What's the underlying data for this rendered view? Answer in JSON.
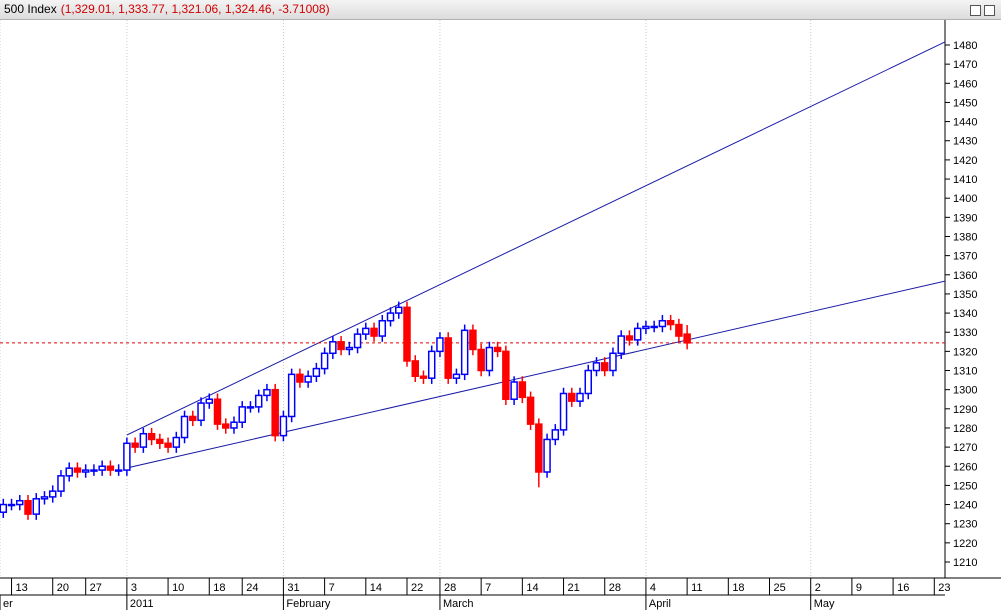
{
  "title_bar": {
    "name": "500 Index",
    "values": "(1,329.01, 1,333.77, 1,321.06, 1,324.46, -3.71008)"
  },
  "chart_data": {
    "type": "candlestick",
    "x": [
      -15,
      -14,
      -13,
      -12,
      -11,
      -10,
      -9,
      -8,
      -7,
      -6,
      -5,
      -4,
      -3,
      -2,
      -1,
      0,
      1,
      2,
      3,
      4,
      5,
      6,
      7,
      8,
      9,
      10,
      11,
      12,
      13,
      14,
      15,
      16,
      17,
      18,
      19,
      20,
      21,
      22,
      23,
      24,
      25,
      26,
      27,
      28,
      29,
      30,
      31,
      32,
      33,
      34,
      35,
      36,
      37,
      38,
      39,
      40,
      41,
      42,
      43,
      44,
      45,
      46,
      47,
      48,
      49,
      50,
      51,
      52,
      53,
      54,
      55,
      56,
      57,
      58,
      59,
      60,
      61,
      62,
      63,
      64,
      65,
      66,
      67,
      68
    ],
    "open": [
      1236,
      1240,
      1240,
      1242,
      1235,
      1243,
      1244,
      1247,
      1255,
      1259,
      1257,
      1258,
      1258,
      1260,
      1258,
      1258,
      1272,
      1270,
      1277,
      1274,
      1272,
      1270,
      1275,
      1286,
      1284,
      1293,
      1295,
      1282,
      1280,
      1283,
      1291,
      1291,
      1297,
      1300,
      1276,
      1286,
      1308,
      1304,
      1307,
      1311,
      1319,
      1325,
      1321,
      1322,
      1329,
      1332,
      1328,
      1336,
      1340,
      1343,
      1315,
      1307,
      1306,
      1320,
      1327,
      1306,
      1308,
      1331,
      1321,
      1310,
      1322,
      1320,
      1295,
      1304,
      1296,
      1282,
      1257,
      1274,
      1279,
      1298,
      1294,
      1298,
      1310,
      1314,
      1310,
      1319,
      1328,
      1326,
      1332,
      1333,
      1333,
      1336,
      1334,
      1329.01
    ],
    "high": [
      1243,
      1243,
      1245,
      1245,
      1246,
      1247,
      1250,
      1258,
      1262,
      1262,
      1261,
      1261,
      1263,
      1263,
      1261,
      1275,
      1275,
      1280,
      1280,
      1277,
      1275,
      1278,
      1289,
      1289,
      1296,
      1298,
      1298,
      1285,
      1286,
      1294,
      1294,
      1300,
      1303,
      1303,
      1289,
      1311,
      1311,
      1310,
      1314,
      1322,
      1328,
      1328,
      1325,
      1332,
      1335,
      1335,
      1339,
      1343,
      1346,
      1346,
      1318,
      1310,
      1323,
      1330,
      1330,
      1311,
      1334,
      1334,
      1324,
      1325,
      1325,
      1323,
      1307,
      1307,
      1299,
      1285,
      1277,
      1282,
      1301,
      1301,
      1301,
      1313,
      1317,
      1317,
      1322,
      1331,
      1331,
      1335,
      1336,
      1336,
      1339,
      1339,
      1337,
      1333.77
    ],
    "low": [
      1233,
      1237,
      1237,
      1232,
      1232,
      1240,
      1241,
      1244,
      1252,
      1254,
      1254,
      1255,
      1255,
      1255,
      1255,
      1255,
      1267,
      1267,
      1271,
      1269,
      1267,
      1267,
      1272,
      1281,
      1281,
      1290,
      1279,
      1277,
      1277,
      1280,
      1288,
      1288,
      1294,
      1273,
      1273,
      1283,
      1301,
      1301,
      1304,
      1308,
      1316,
      1318,
      1318,
      1319,
      1326,
      1325,
      1325,
      1333,
      1337,
      1312,
      1304,
      1303,
      1303,
      1317,
      1303,
      1303,
      1305,
      1318,
      1307,
      1307,
      1317,
      1292,
      1292,
      1293,
      1279,
      1249,
      1254,
      1271,
      1276,
      1291,
      1291,
      1295,
      1307,
      1307,
      1307,
      1316,
      1323,
      1323,
      1329,
      1330,
      1330,
      1331,
      1325,
      1321.06
    ],
    "close": [
      1240,
      1240,
      1242,
      1235,
      1243,
      1244,
      1247,
      1255,
      1259,
      1257,
      1258,
      1258,
      1260,
      1258,
      1258,
      1272,
      1270,
      1277,
      1274,
      1272,
      1270,
      1275,
      1286,
      1284,
      1293,
      1295,
      1282,
      1280,
      1283,
      1291,
      1291,
      1297,
      1300,
      1276,
      1286,
      1308,
      1304,
      1307,
      1311,
      1319,
      1325,
      1321,
      1322,
      1329,
      1332,
      1328,
      1336,
      1340,
      1343,
      1315,
      1307,
      1306,
      1320,
      1327,
      1306,
      1308,
      1331,
      1321,
      1310,
      1322,
      1320,
      1295,
      1304,
      1296,
      1282,
      1257,
      1274,
      1279,
      1298,
      1294,
      1298,
      1310,
      1314,
      1310,
      1319,
      1328,
      1326,
      1332,
      1333,
      1333,
      1336,
      1334,
      1328,
      1324.46
    ],
    "up_color": "#0000ff",
    "down_color": "#ff0000",
    "xlim": [
      -15.4,
      99.3
    ],
    "ylim": [
      1201.64,
      1493.06
    ],
    "yticks": [
      1210,
      1220,
      1230,
      1240,
      1250,
      1260,
      1270,
      1280,
      1290,
      1300,
      1310,
      1320,
      1330,
      1340,
      1350,
      1360,
      1370,
      1380,
      1390,
      1400,
      1410,
      1420,
      1430,
      1440,
      1450,
      1460,
      1470,
      1480
    ],
    "xticks": [
      {
        "value": -14,
        "label": "13"
      },
      {
        "value": -9,
        "label": "20"
      },
      {
        "value": -5,
        "label": "27"
      },
      {
        "value": 0,
        "label": "3"
      },
      {
        "value": 5,
        "label": "10"
      },
      {
        "value": 10,
        "label": "18"
      },
      {
        "value": 14,
        "label": "24"
      },
      {
        "value": 19,
        "label": "31"
      },
      {
        "value": 24,
        "label": "7"
      },
      {
        "value": 29,
        "label": "14"
      },
      {
        "value": 34,
        "label": "22"
      },
      {
        "value": 38,
        "label": "28"
      },
      {
        "value": 43,
        "label": "7"
      },
      {
        "value": 48,
        "label": "14"
      },
      {
        "value": 53,
        "label": "21"
      },
      {
        "value": 58,
        "label": "28"
      },
      {
        "value": 63,
        "label": "4"
      },
      {
        "value": 68,
        "label": "11"
      },
      {
        "value": 73,
        "label": "18"
      },
      {
        "value": 78,
        "label": "25"
      },
      {
        "value": 83,
        "label": "2"
      },
      {
        "value": 88,
        "label": "9"
      },
      {
        "value": 93,
        "label": "16"
      },
      {
        "value": 98,
        "label": "23"
      }
    ],
    "month_ticks": [
      {
        "value": -15.4,
        "label": "er"
      },
      {
        "value": 0,
        "label": "2011"
      },
      {
        "value": 19,
        "label": "February"
      },
      {
        "value": 38,
        "label": "March"
      },
      {
        "value": 63,
        "label": "April"
      },
      {
        "value": 83,
        "label": "May"
      }
    ],
    "trendlines": [
      {
        "x": [
          0,
          99.3
        ],
        "y": [
          1276.3,
          1481.6
        ],
        "color": "#1c1ca8"
      },
      {
        "x": [
          0,
          99.3
        ],
        "y": [
          1259.1,
          1356.7
        ],
        "color": "#1c1ca8"
      }
    ],
    "last_line_color": "#e00000"
  }
}
